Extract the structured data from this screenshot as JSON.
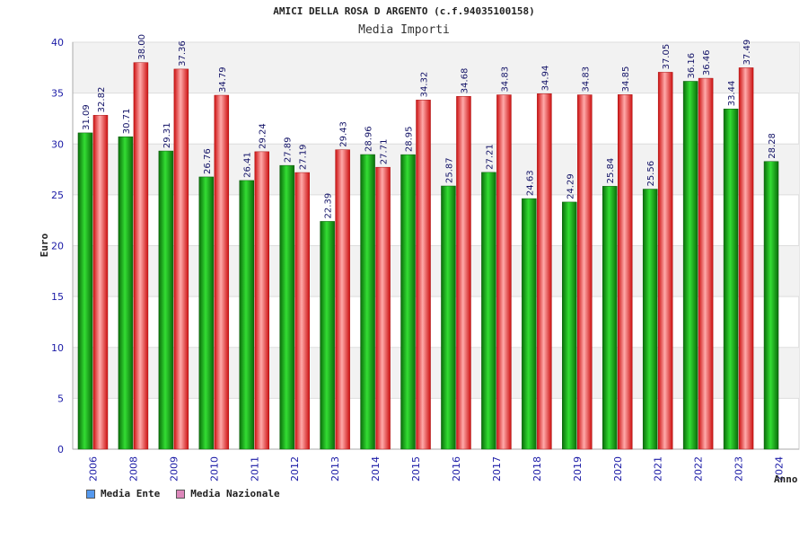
{
  "chart_data": {
    "type": "bar",
    "title": "AMICI DELLA ROSA D ARGENTO (c.f.94035100158)",
    "subtitle": "Media Importi",
    "xlabel": "Anno",
    "ylabel": "Euro",
    "ylim": [
      0,
      40
    ],
    "yticks": [
      0,
      5,
      10,
      15,
      20,
      25,
      30,
      35,
      40
    ],
    "grid": true,
    "legend_position": "bottom-left",
    "categories": [
      "2006",
      "2008",
      "2009",
      "2010",
      "2011",
      "2012",
      "2013",
      "2014",
      "2015",
      "2016",
      "2017",
      "2018",
      "2019",
      "2020",
      "2021",
      "2022",
      "2023",
      "2024"
    ],
    "series": [
      {
        "name": "Media Ente",
        "color": "#22aa22",
        "legend_color": "#5599ee",
        "values": [
          31.09,
          30.71,
          29.31,
          26.76,
          26.41,
          27.89,
          22.39,
          28.96,
          28.95,
          25.87,
          27.21,
          24.63,
          24.29,
          25.84,
          25.56,
          36.16,
          33.44,
          28.28
        ],
        "labels": [
          "31.09",
          "30.71",
          "29.31",
          "26.76",
          "26.41",
          "27.89",
          "22.39",
          "28.96",
          "28.95",
          "25.87",
          "27.21",
          "24.63",
          "24.29",
          "25.84",
          "25.56",
          "36.16",
          "33.44",
          "28.28"
        ]
      },
      {
        "name": "Media Nazionale",
        "color": "#ee3333",
        "legend_color": "#dd88bb",
        "values": [
          32.82,
          38.0,
          37.36,
          34.79,
          29.24,
          27.19,
          29.43,
          27.71,
          34.32,
          34.68,
          34.83,
          34.94,
          34.83,
          34.85,
          37.05,
          36.46,
          37.49,
          null
        ],
        "labels": [
          "32.82",
          "38.00",
          "37.36",
          "34.79",
          "29.24",
          "27.19",
          "29.43",
          "27.71",
          "34.32",
          "34.68",
          "34.83",
          "34.94",
          "34.83",
          "34.85",
          "37.05",
          "36.46",
          "37.49",
          null
        ]
      }
    ]
  }
}
